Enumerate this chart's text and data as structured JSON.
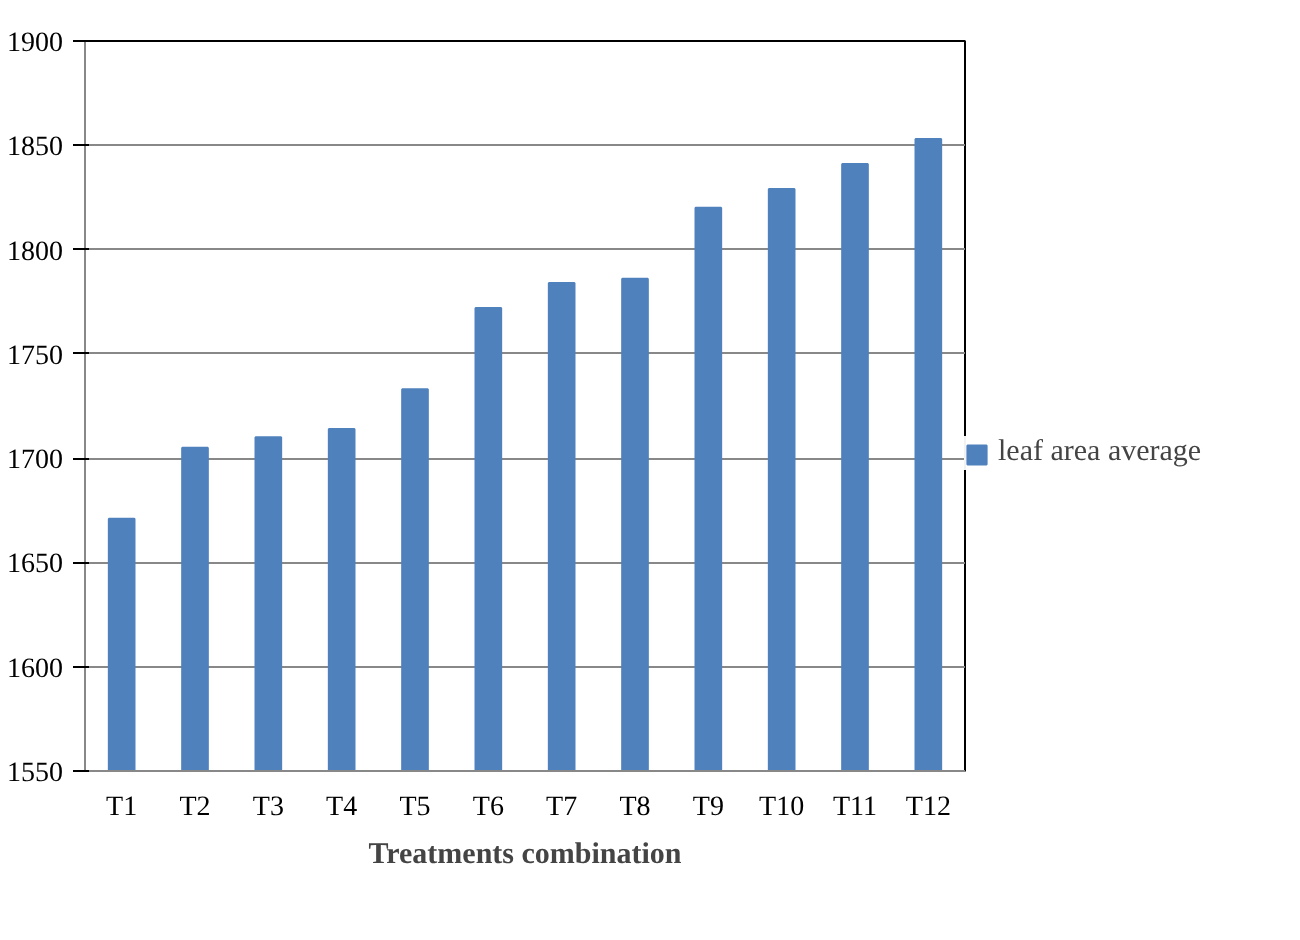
{
  "chart_data": {
    "type": "bar",
    "xlabel": "Treatments combination",
    "categories": [
      "T1",
      "T2",
      "T3",
      "T4",
      "T5",
      "T6",
      "T7",
      "T8",
      "T9",
      "T10",
      "T11",
      "T12"
    ],
    "series": [
      {
        "name": "leaf area average",
        "color": "#4f81bd",
        "values": [
          1671,
          1705,
          1710,
          1714,
          1733,
          1772,
          1784,
          1786,
          1820,
          1829,
          1841,
          1853
        ]
      }
    ],
    "ylim": [
      1550,
      1900
    ],
    "yticks": [
      1550,
      1600,
      1650,
      1700,
      1750,
      1800,
      1850,
      1900
    ],
    "grid": "y",
    "legend": "right"
  }
}
